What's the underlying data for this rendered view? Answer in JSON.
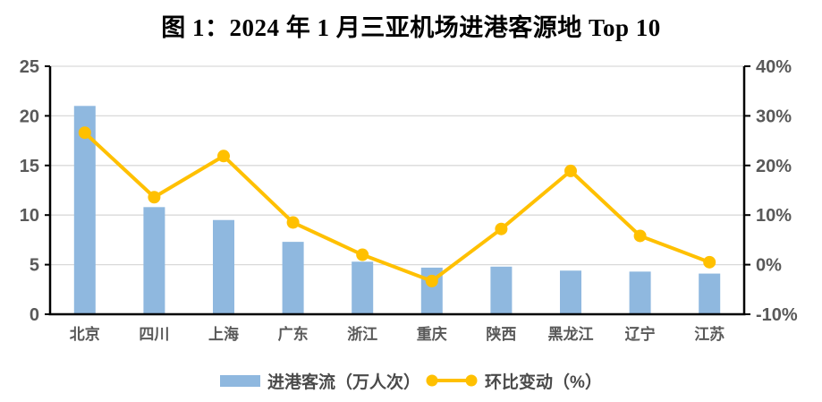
{
  "title": "图 1：2024 年 1 月三亚机场进港客源地 Top 10",
  "legend": {
    "bar_label": "进港客流（万人次）",
    "line_label": "环比变动（%）"
  },
  "colors": {
    "bar": "#8FB8DF",
    "line": "#FFC000",
    "grid": "#D9D9D9",
    "axis": "#000000",
    "tick_text": "#595959"
  },
  "chart_data": {
    "type": "bar",
    "subtype": "combo-bar-line",
    "title": "图 1：2024 年 1 月三亚机场进港客源地 Top 10",
    "categories": [
      "北京",
      "四川",
      "上海",
      "广东",
      "浙江",
      "重庆",
      "陕西",
      "黑龙江",
      "辽宁",
      "江苏"
    ],
    "series": [
      {
        "name": "进港客流（万人次）",
        "type": "bar",
        "axis": "left",
        "values": [
          21.0,
          10.8,
          9.5,
          7.3,
          5.3,
          4.7,
          4.8,
          4.4,
          4.3,
          4.1
        ]
      },
      {
        "name": "环比变动（%）",
        "type": "line",
        "axis": "right",
        "values": [
          26.6,
          13.6,
          21.9,
          8.5,
          2.0,
          -3.3,
          7.2,
          18.9,
          5.8,
          0.5
        ]
      }
    ],
    "left_axis": {
      "min": 0,
      "max": 25,
      "step": 5,
      "tick_labels": [
        "0",
        "5",
        "10",
        "15",
        "20",
        "25"
      ]
    },
    "right_axis": {
      "min": -10,
      "max": 40,
      "step": 10,
      "tick_labels": [
        "-10%",
        "0%",
        "10%",
        "20%",
        "30%",
        "40%"
      ]
    },
    "grid": true,
    "legend_position": "bottom"
  }
}
